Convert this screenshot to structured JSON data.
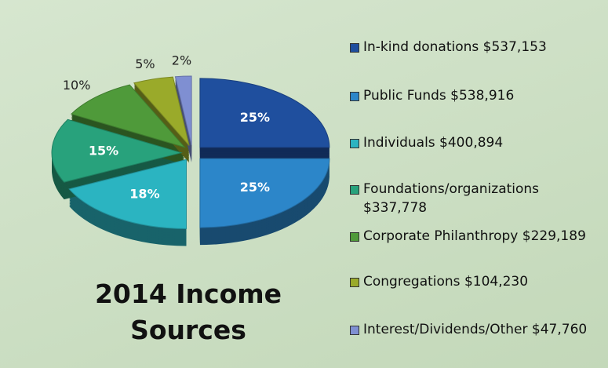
{
  "chart_data": {
    "type": "pie",
    "title": "2014 Income Sources",
    "categories": [
      "In-kind donations $537,153",
      "Public Funds $538,916",
      "Individuals $400,894",
      "Foundations/organizations $337,778",
      "Corporate Philanthropy $229,189",
      "Congregations $104,230",
      "Interest/Dividends/Other $47,760"
    ],
    "values": [
      25,
      25,
      18,
      15,
      10,
      5,
      2
    ],
    "value_labels": [
      "25%",
      "25%",
      "18%",
      "15%",
      "10%",
      "5%",
      "2%"
    ],
    "colors": [
      "#1f4f9e",
      "#2c86c9",
      "#2bb4c1",
      "#28a27c",
      "#4f9a3a",
      "#9aaa2a",
      "#7f8fd2"
    ],
    "legend": "right"
  }
}
